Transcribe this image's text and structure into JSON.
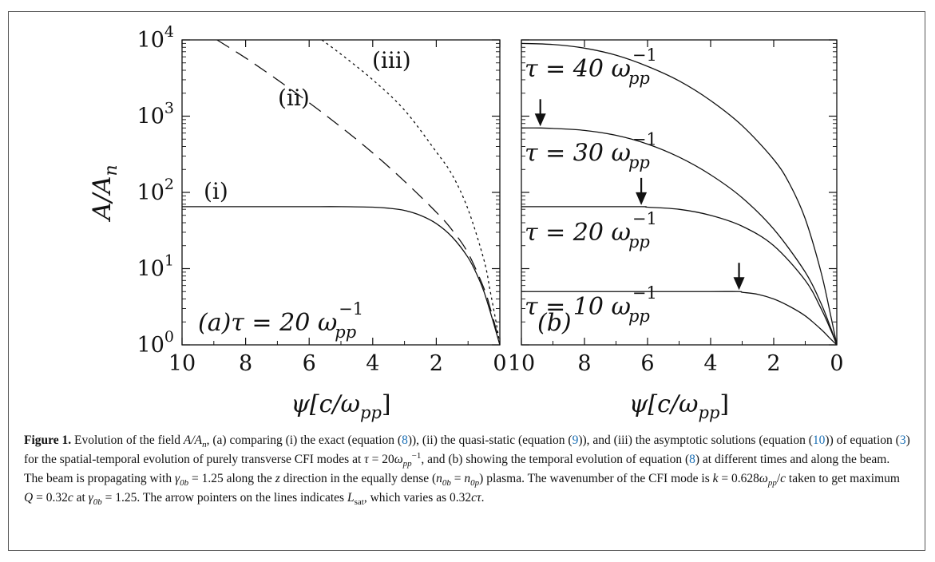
{
  "chart_data": [
    {
      "type": "line",
      "panel_label": "(a)",
      "tau_label": "τ = 20 ω",
      "tau_sub": "pp",
      "tau_sup": "−1",
      "xlabel": "ψ[c/ω",
      "xlabel_sub": "pp",
      "xlabel_end": "]",
      "ylabel": "A/A",
      "ylabel_sub": "n",
      "xlim": [
        10,
        0
      ],
      "ylim": [
        1,
        10000
      ],
      "yscale": "log",
      "xticks": [
        "10",
        "8",
        "6",
        "4",
        "2",
        "0"
      ],
      "yticks": [
        {
          "base": "10",
          "exp": "0"
        },
        {
          "base": "10",
          "exp": "1"
        },
        {
          "base": "10",
          "exp": "2"
        },
        {
          "base": "10",
          "exp": "3"
        },
        {
          "base": "10",
          "exp": "4"
        }
      ],
      "series": [
        {
          "name": "(i)",
          "style": "solid",
          "x": [
            10,
            9,
            8,
            7,
            6,
            5,
            4,
            3.5,
            3,
            2.5,
            2,
            1.5,
            1,
            0.7,
            0.5,
            0.3,
            0.1,
            0
          ],
          "y": [
            65,
            65,
            65,
            65,
            65,
            65,
            64,
            62,
            58,
            50,
            39,
            26,
            14,
            8,
            5,
            2.7,
            1.4,
            1
          ]
        },
        {
          "name": "(ii)",
          "style": "dashed",
          "x": [
            8.9,
            8,
            7,
            6,
            5,
            4,
            3,
            2,
            1.5,
            1,
            0.5,
            0.3,
            0.1,
            0
          ],
          "y": [
            10000,
            5800,
            3000,
            1500,
            720,
            330,
            140,
            55,
            32,
            16,
            5.5,
            3,
            1.5,
            1
          ]
        },
        {
          "name": "(iii)",
          "style": "dotted",
          "x": [
            5.6,
            5,
            4,
            3,
            2,
            1.5,
            1,
            0.5,
            0.3,
            0.1,
            0
          ],
          "y": [
            10000,
            6500,
            3000,
            1200,
            340,
            170,
            60,
            13,
            5,
            1.8,
            1
          ]
        }
      ],
      "annotations": [
        "(i)",
        "(ii)",
        "(iii)"
      ]
    },
    {
      "type": "line",
      "panel_label": "(b)",
      "xlabel": "ψ[c/ω",
      "xlabel_sub": "pp",
      "xlabel_end": "]",
      "xlim": [
        10,
        0
      ],
      "ylim": [
        1,
        10000
      ],
      "yscale": "log",
      "xticks": [
        "10",
        "8",
        "6",
        "4",
        "2",
        "0"
      ],
      "series": [
        {
          "name": "τ = 40 ω",
          "x": [
            10,
            9,
            8,
            7,
            6,
            5,
            4,
            3,
            2,
            1.5,
            1,
            0.5,
            0.2,
            0
          ],
          "y": [
            9000,
            8700,
            7800,
            6300,
            4500,
            2900,
            1600,
            750,
            270,
            130,
            45,
            9,
            2.5,
            1
          ]
        },
        {
          "name": "τ = 30 ω",
          "x": [
            10,
            9.4,
            9,
            8,
            7,
            6,
            5,
            4,
            3,
            2,
            1,
            0.5,
            0.2,
            0
          ],
          "y": [
            700,
            700,
            690,
            650,
            560,
            430,
            290,
            170,
            85,
            33,
            9,
            3.5,
            1.7,
            1
          ]
        },
        {
          "name": "τ = 20 ω",
          "x": [
            10,
            8,
            6.2,
            6,
            5,
            4,
            3,
            2,
            1,
            0.5,
            0.2,
            0
          ],
          "y": [
            65,
            65,
            65,
            64,
            60,
            50,
            36,
            20,
            7,
            3,
            1.6,
            1
          ]
        },
        {
          "name": "τ = 10 ω",
          "x": [
            10,
            8,
            6,
            4,
            3.1,
            3,
            2.5,
            2,
            1.5,
            1,
            0.5,
            0.2,
            0
          ],
          "y": [
            5,
            5,
            5,
            5,
            5,
            4.9,
            4.6,
            4,
            3.2,
            2.4,
            1.6,
            1.2,
            1
          ]
        }
      ],
      "arrows": [
        {
          "x": 9.4,
          "y": 700
        },
        {
          "x": 6.2,
          "y": 65
        },
        {
          "x": 3.1,
          "y": 5
        }
      ],
      "curve_labels": [
        {
          "text": "τ = 40 ω",
          "y": 4200
        },
        {
          "text": "τ = 30 ω",
          "y": 330
        },
        {
          "text": "τ = 20 ω",
          "y": 30
        },
        {
          "text": "τ = 10 ω",
          "y": 3.2
        }
      ],
      "curve_label_sub": "pp",
      "curve_label_sup": "−1"
    }
  ],
  "caption": {
    "label": "Figure 1.",
    "segments": [
      {
        "t": " Evolution of the field "
      },
      {
        "t": "A/A",
        "i": true
      },
      {
        "t": "n",
        "i": true,
        "sub": true
      },
      {
        "t": ", (a) comparing (i) the exact (equation ("
      },
      {
        "t": "8",
        "ref": true
      },
      {
        "t": ")), (ii) the quasi-static (equation ("
      },
      {
        "t": "9",
        "ref": true
      },
      {
        "t": ")), and (iii) the asymptotic solutions (equation ("
      },
      {
        "t": "10",
        "ref": true
      },
      {
        "t": ")) of equation ("
      },
      {
        "t": "3",
        "ref": true
      },
      {
        "t": ") for the spatial-temporal evolution of purely transverse CFI modes at "
      },
      {
        "t": "τ",
        "i": true
      },
      {
        "t": " = 20"
      },
      {
        "t": "ω",
        "i": true
      },
      {
        "t": "pp",
        "i": true,
        "sub": true
      },
      {
        "t": "−1",
        "sup": true
      },
      {
        "t": ", and (b) showing the temporal evolution of equation ("
      },
      {
        "t": "8",
        "ref": true
      },
      {
        "t": ") at different times and along the beam. The beam is propagating with "
      },
      {
        "t": "γ",
        "i": true
      },
      {
        "t": "0b",
        "i": true,
        "sub": true
      },
      {
        "t": " = 1.25 along the "
      },
      {
        "t": "z",
        "i": true
      },
      {
        "t": " direction in the equally dense ("
      },
      {
        "t": "n",
        "i": true
      },
      {
        "t": "0b",
        "i": true,
        "sub": true
      },
      {
        "t": " = "
      },
      {
        "t": "n",
        "i": true
      },
      {
        "t": "0p",
        "i": true,
        "sub": true
      },
      {
        "t": ") plasma. The wavenumber of the CFI mode is "
      },
      {
        "t": "k",
        "i": true
      },
      {
        "t": " = 0.628"
      },
      {
        "t": "ω",
        "i": true
      },
      {
        "t": "pp",
        "i": true,
        "sub": true
      },
      {
        "t": "/"
      },
      {
        "t": "c",
        "i": true
      },
      {
        "t": " taken to get maximum "
      },
      {
        "t": "Q",
        "i": true
      },
      {
        "t": " = 0.32"
      },
      {
        "t": "c",
        "i": true
      },
      {
        "t": " at "
      },
      {
        "t": "γ",
        "i": true
      },
      {
        "t": "0b",
        "i": true,
        "sub": true
      },
      {
        "t": " = 1.25. The arrow pointers on the lines indicates "
      },
      {
        "t": "L",
        "i": true
      },
      {
        "t": "sat",
        "sub": true
      },
      {
        "t": ", which varies as 0.32"
      },
      {
        "t": "cτ",
        "i": true
      },
      {
        "t": "."
      }
    ]
  }
}
